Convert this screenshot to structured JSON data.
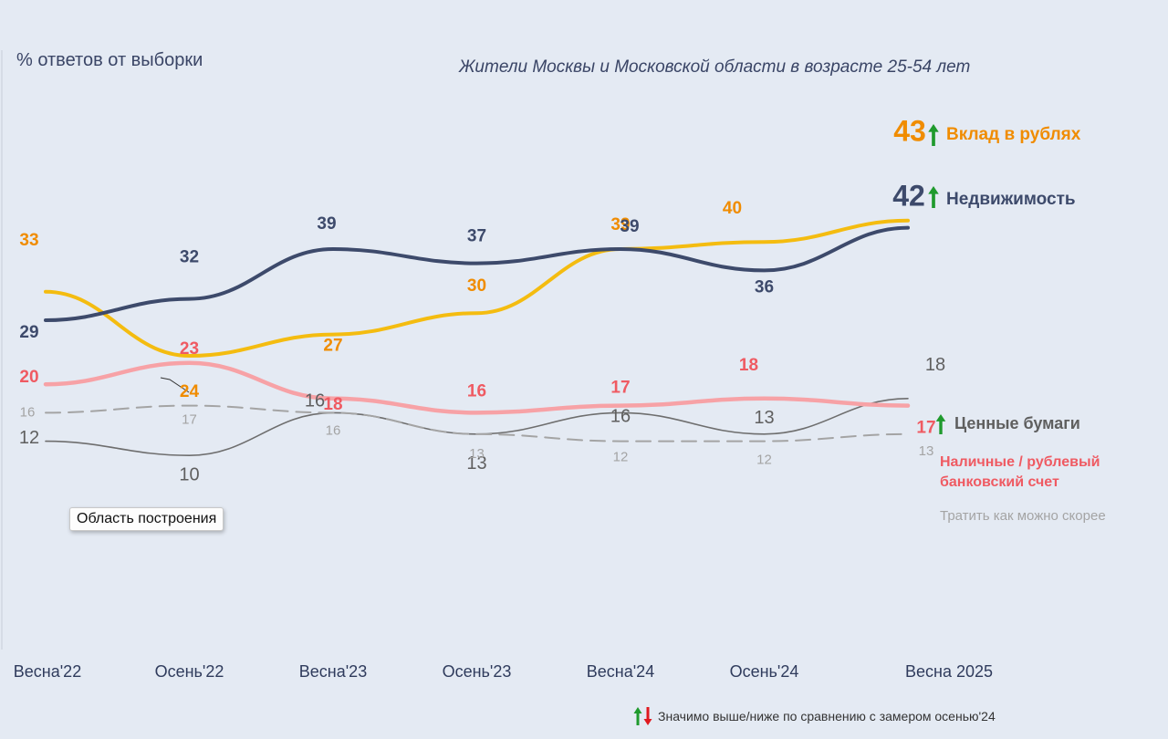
{
  "ylabel": "% ответов от выборки",
  "subtitle": "Жители Москвы и Московской области в возрасте 25-54 лет",
  "tooltip": "Область построения",
  "footnote": "Значимо выше/ниже по сравнению с замером осенью'24",
  "chart_data": {
    "type": "line",
    "categories": [
      "Весна'22",
      "Осень'22",
      "Весна'23",
      "Осень'23",
      "Весна'24",
      "Осень'24",
      "Весна 2025"
    ],
    "series": [
      {
        "name": "Вклад в рублях",
        "values": [
          33,
          24,
          27,
          30,
          39,
          40,
          43
        ],
        "color": "#f4bc10",
        "label_color": "#f08c00",
        "trend": "up"
      },
      {
        "name": "Недвижимость",
        "values": [
          29,
          32,
          39,
          37,
          39,
          36,
          42
        ],
        "color": "#3d4a6b",
        "label_color": "#3d4a6b",
        "trend": "up"
      },
      {
        "name": "Ценные бумаги",
        "values": [
          12,
          10,
          16,
          13,
          16,
          13,
          18
        ],
        "color": "#6e6e6e",
        "label_color": "#5f5f5f",
        "trend": "up"
      },
      {
        "name": "Наличные / рублевый банковский счет",
        "values": [
          20,
          23,
          18,
          16,
          17,
          18,
          17
        ],
        "color": "#f7a2a6",
        "label_color": "#ef5a62"
      },
      {
        "name": "Тратить как можно скорее",
        "values": [
          16,
          17,
          16,
          13,
          12,
          12,
          13
        ],
        "color": "#a4a4a4",
        "label_color": "#a4a4a4",
        "dashed": true
      }
    ]
  }
}
